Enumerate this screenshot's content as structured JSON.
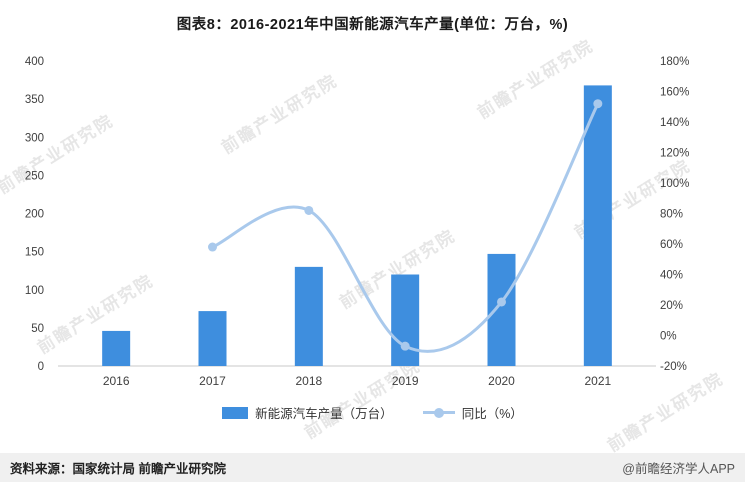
{
  "title": "图表8：2016-2021年中国新能源汽车产量(单位：万台，%)",
  "source": "资料来源：国家统计局 前瞻产业研究院",
  "brand": "@前瞻经济学人APP",
  "watermark": "前瞻产业研究院",
  "colors": {
    "bar": "#3e8ede",
    "line": "#a9c9ec",
    "axis_line": "#c9c9c9",
    "tick_text": "#404040"
  },
  "legend": [
    {
      "label": "新能源汽车产量（万台）",
      "type": "bar"
    },
    {
      "label": "同比（%）",
      "type": "line"
    }
  ],
  "chart_data": {
    "type": "bar+line",
    "title": "图表8：2016-2021年中国新能源汽车产量(单位：万台，%)",
    "categories": [
      "2016",
      "2017",
      "2018",
      "2019",
      "2020",
      "2021"
    ],
    "series": [
      {
        "name": "新能源汽车产量（万台）",
        "type": "bar",
        "axis": "left",
        "values": [
          46,
          72,
          130,
          120,
          147,
          368
        ]
      },
      {
        "name": "同比（%）",
        "type": "line",
        "axis": "right",
        "values": [
          null,
          58,
          82,
          -7,
          22,
          152
        ]
      }
    ],
    "left_axis": {
      "min": 0,
      "max": 400,
      "step": 50,
      "ticks": [
        "0",
        "50",
        "100",
        "150",
        "200",
        "250",
        "300",
        "350",
        "400"
      ]
    },
    "right_axis": {
      "min": -20,
      "max": 180,
      "step": 20,
      "ticks": [
        "-20%",
        "0%",
        "20%",
        "40%",
        "60%",
        "80%",
        "100%",
        "120%",
        "140%",
        "160%",
        "180%"
      ]
    },
    "grid": false,
    "legend_position": "bottom"
  }
}
